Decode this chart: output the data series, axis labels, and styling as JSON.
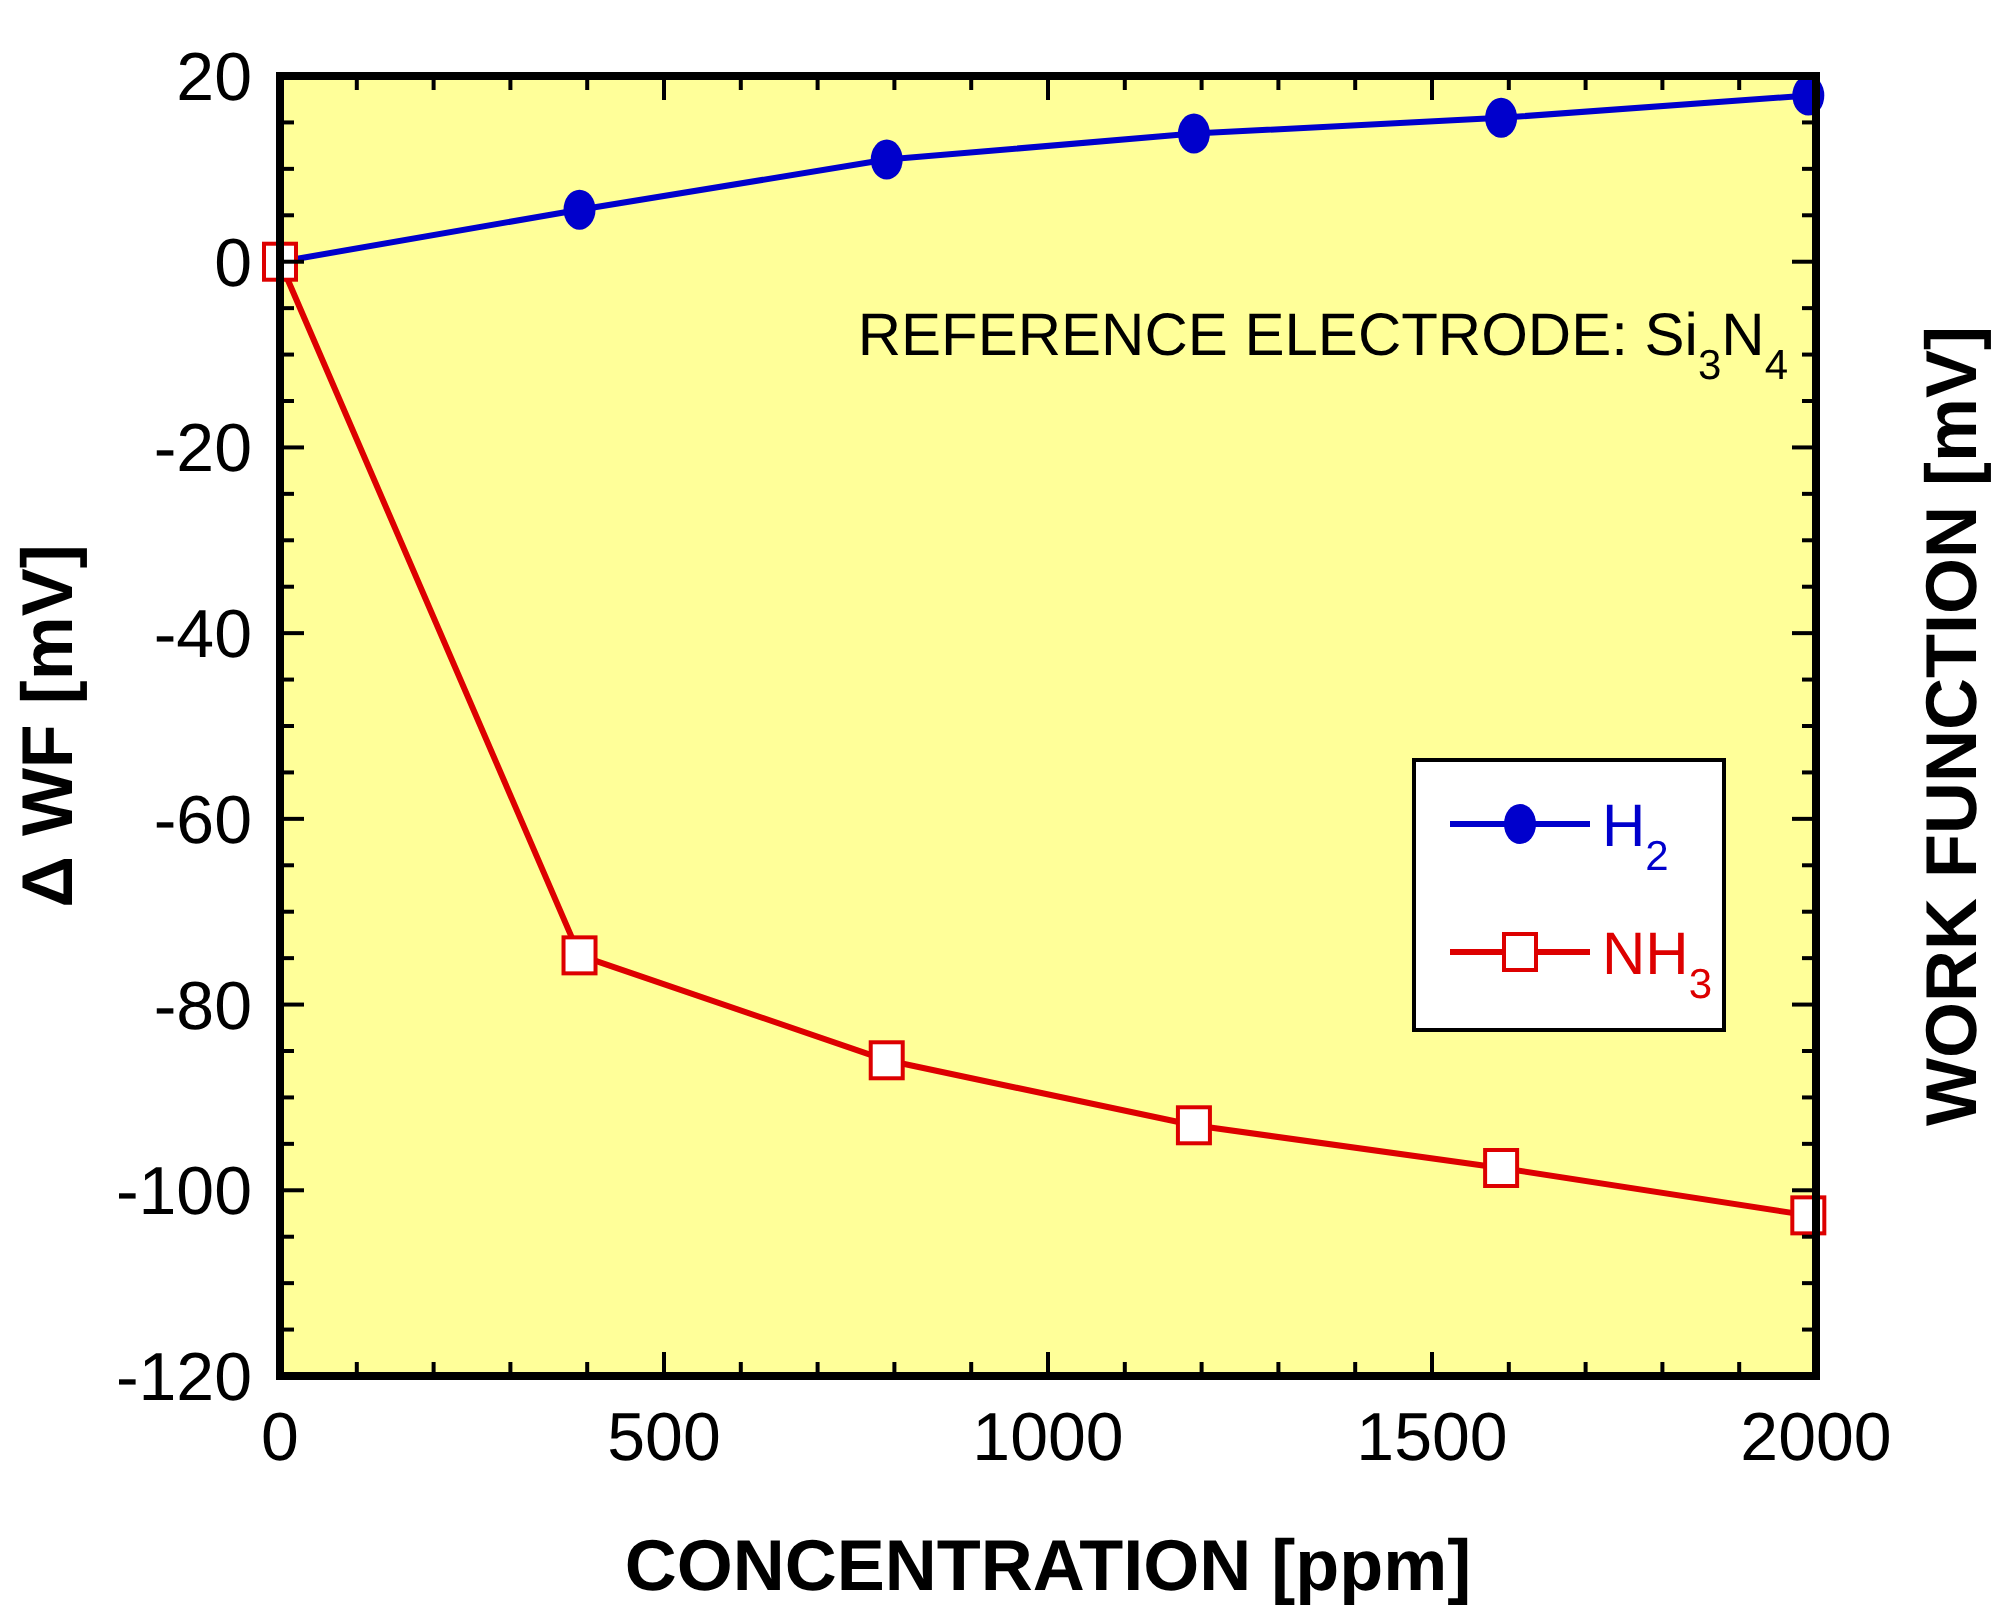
{
  "chart_data": {
    "type": "line",
    "xlabel": "CONCENTRATION [ppm]",
    "ylabel": "Δ WF [mV]",
    "y2label": "WORK FUNCTION [mV]",
    "annotations": [
      "REFERENCE ELECTRODE: Si$_{3}$N$_{4}$"
    ],
    "x": [
      0,
      390,
      790,
      1190,
      1590,
      1990
    ],
    "series": [
      {
        "name": "H$_{2}$",
        "color": "#0000cc",
        "marker": "circle",
        "values": [
          0,
          5.6,
          11,
          13.8,
          15.5,
          17.9
        ]
      },
      {
        "name": "NH$_{3}$",
        "color": "#dd0000",
        "marker": "square",
        "values": [
          0,
          -74.7,
          -86,
          -93,
          -97.6,
          -102.7
        ]
      }
    ],
    "xlim": [
      0,
      2000
    ],
    "xticks": [
      0,
      500,
      1000,
      1500,
      2000
    ],
    "ylim": [
      -120,
      20
    ],
    "yticks": [
      -120,
      -100,
      -80,
      -60,
      -40,
      -20,
      0,
      20
    ],
    "grid": false,
    "legend": "right",
    "line_style": "solid"
  }
}
